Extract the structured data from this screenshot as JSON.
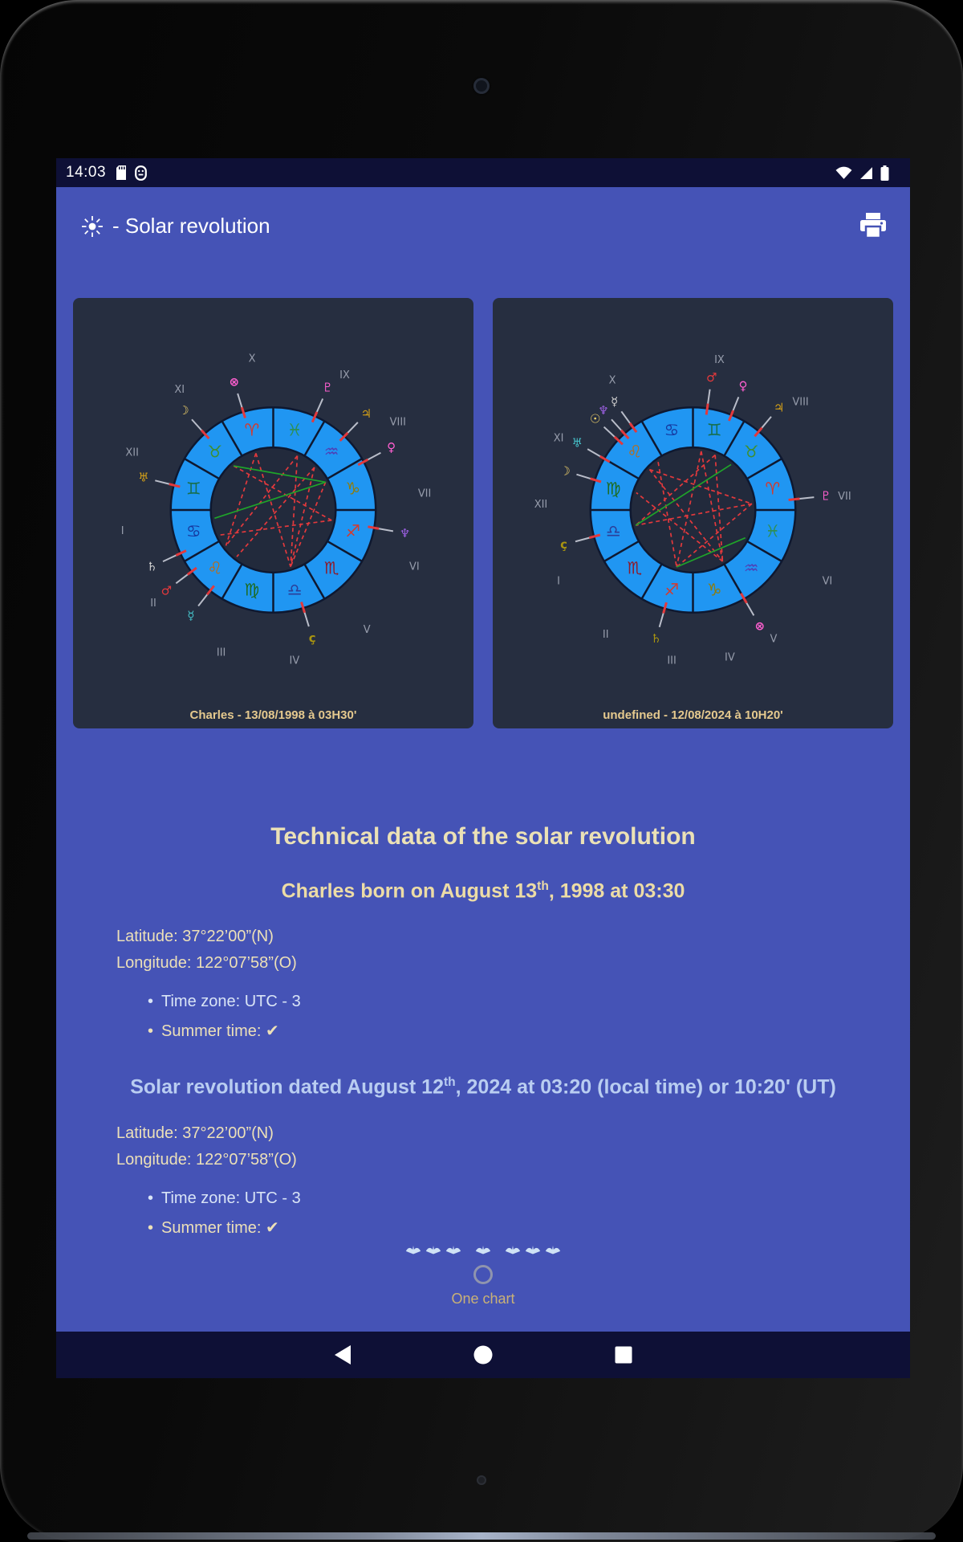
{
  "palette": {
    "app_bg": "#4553b6",
    "bar_bg": "#0e1036",
    "panel_bg": "#262e40",
    "ring_blue": "#2096f2",
    "cream": "#ece0b8",
    "heading_blue": "#b9cdf1",
    "caption": "#e5c98e",
    "one_chart": "#c9b177",
    "aspect_red": "#e3393c",
    "aspect_green": "#1fa32a"
  },
  "status_bar": {
    "time": "14:03"
  },
  "app_bar": {
    "title": "- Solar revolution"
  },
  "wheels": [
    {
      "caption": "Charles - 13/08/1998 à 03H30'",
      "signs": [
        {
          "g": "♈",
          "c": "#d23b2e"
        },
        {
          "g": "♓",
          "c": "#2e8f57"
        },
        {
          "g": "♒",
          "c": "#4f3fb5"
        },
        {
          "g": "♑",
          "c": "#8f7c0a"
        },
        {
          "g": "♐",
          "c": "#d23b2e"
        },
        {
          "g": "♏",
          "c": "#8e1a2a"
        },
        {
          "g": "♎",
          "c": "#2b3f99"
        },
        {
          "g": "♍",
          "c": "#1d6b21"
        },
        {
          "g": "♌",
          "c": "#c06a10"
        },
        {
          "g": "♋",
          "c": "#16379e"
        },
        {
          "g": "♊",
          "c": "#176f4f"
        },
        {
          "g": "♉",
          "c": "#3f8f2f"
        }
      ],
      "planets": [
        {
          "g": "☽",
          "c": "#f2d36b",
          "a": -42
        },
        {
          "g": "⊗",
          "c": "#ff5fd0",
          "a": -17
        },
        {
          "g": "♇",
          "c": "#ff5fd0",
          "a": 24
        },
        {
          "g": "♃",
          "c": "#d4a017",
          "a": 44
        },
        {
          "g": "♀",
          "c": "#ff5fd0",
          "a": 62
        },
        {
          "g": "♆",
          "c": "#9a5fe0",
          "a": 100
        },
        {
          "g": "ç",
          "c": "#a89410",
          "a": 163
        },
        {
          "g": "☿",
          "c": "#45c0c8",
          "a": 218
        },
        {
          "g": "♂",
          "c": "#e3393c",
          "a": 233
        },
        {
          "g": "♄",
          "c": "#cfcfcf",
          "a": 245
        },
        {
          "g": "♅",
          "c": "#d4a017",
          "a": 284
        }
      ],
      "numerals": [
        {
          "t": "X",
          "a": -8
        },
        {
          "t": "XI",
          "a": -38
        },
        {
          "t": "XII",
          "a": -68
        },
        {
          "t": "I",
          "a": -98
        },
        {
          "t": "II",
          "a": -128
        },
        {
          "t": "III",
          "a": -160
        },
        {
          "t": "IV",
          "a": 172
        },
        {
          "t": "V",
          "a": 142
        },
        {
          "t": "VI",
          "a": 112
        },
        {
          "t": "VII",
          "a": 84
        },
        {
          "t": "VIII",
          "a": 55
        },
        {
          "t": "IX",
          "a": 28
        }
      ],
      "aspects": [
        {
          "a": -17,
          "b": 163,
          "c": "#e3393c",
          "d": true
        },
        {
          "a": -17,
          "b": 233,
          "c": "#e3393c",
          "d": true
        },
        {
          "a": 24,
          "b": 233,
          "c": "#e3393c",
          "d": true
        },
        {
          "a": 24,
          "b": 163,
          "c": "#e3393c",
          "d": true
        },
        {
          "a": 44,
          "b": 218,
          "c": "#e3393c",
          "d": true
        },
        {
          "a": 62,
          "b": 163,
          "c": "#e3393c",
          "d": true
        },
        {
          "a": -42,
          "b": 100,
          "c": "#e3393c",
          "d": true
        },
        {
          "a": 100,
          "b": 245,
          "c": "#e3393c",
          "d": true
        },
        {
          "a": 44,
          "b": 163,
          "c": "#e3393c",
          "d": true
        },
        {
          "a": 62,
          "b": 262,
          "c": "#1fa32a",
          "d": false
        },
        {
          "a": -42,
          "b": 62,
          "c": "#1fa32a",
          "d": false
        }
      ]
    },
    {
      "caption": "undefined - 12/08/2024 à 10H20'",
      "signs": [
        {
          "g": "♋",
          "c": "#16379e"
        },
        {
          "g": "♊",
          "c": "#176f4f"
        },
        {
          "g": "♉",
          "c": "#3f8f2f"
        },
        {
          "g": "♈",
          "c": "#d23b2e"
        },
        {
          "g": "♓",
          "c": "#2e8f57"
        },
        {
          "g": "♒",
          "c": "#4f3fb5"
        },
        {
          "g": "♑",
          "c": "#8f7c0a"
        },
        {
          "g": "♐",
          "c": "#d23b2e"
        },
        {
          "g": "♏",
          "c": "#8e1a2a"
        },
        {
          "g": "♎",
          "c": "#2b3f99"
        },
        {
          "g": "♍",
          "c": "#1d6b21"
        },
        {
          "g": "♌",
          "c": "#c06a10"
        }
      ],
      "planets": [
        {
          "g": "♅",
          "c": "#45c0c8",
          "a": -60
        },
        {
          "g": "☉",
          "c": "#f2d36b",
          "a": -47
        },
        {
          "g": "☿",
          "c": "#cfcfcf",
          "a": -36
        },
        {
          "g": "♂",
          "c": "#e3393c",
          "a": 8
        },
        {
          "g": "♀",
          "c": "#ff5fd0",
          "a": 22
        },
        {
          "g": "♃",
          "c": "#d4a017",
          "a": 40
        },
        {
          "g": "♇",
          "c": "#ff5fd0",
          "a": 84
        },
        {
          "g": "⊗",
          "c": "#ff5fd0",
          "a": 150
        },
        {
          "g": "♄",
          "c": "#a89410",
          "a": 196
        },
        {
          "g": "ç",
          "c": "#a89410",
          "a": 255
        },
        {
          "g": "☽",
          "c": "#f2d36b",
          "a": 287
        },
        {
          "g": "♆",
          "c": "#9a5fe0",
          "a": 318
        }
      ],
      "numerals": [
        {
          "t": "X",
          "a": -32
        },
        {
          "t": "XI",
          "a": -62
        },
        {
          "t": "XII",
          "a": -88
        },
        {
          "t": "I",
          "a": -118
        },
        {
          "t": "II",
          "a": -145
        },
        {
          "t": "III",
          "a": -172
        },
        {
          "t": "IV",
          "a": 166
        },
        {
          "t": "V",
          "a": 148
        },
        {
          "t": "VI",
          "a": 118
        },
        {
          "t": "VII",
          "a": 85
        },
        {
          "t": "VIII",
          "a": 45
        },
        {
          "t": "IX",
          "a": 10
        }
      ],
      "aspects": [
        {
          "a": -47,
          "b": 84,
          "c": "#e3393c",
          "d": true
        },
        {
          "a": -47,
          "b": 150,
          "c": "#e3393c",
          "d": true
        },
        {
          "a": 8,
          "b": 196,
          "c": "#e3393c",
          "d": true
        },
        {
          "a": 8,
          "b": 150,
          "c": "#e3393c",
          "d": true
        },
        {
          "a": 22,
          "b": 255,
          "c": "#e3393c",
          "d": true
        },
        {
          "a": 84,
          "b": 255,
          "c": "#e3393c",
          "d": true
        },
        {
          "a": 84,
          "b": 196,
          "c": "#e3393c",
          "d": true
        },
        {
          "a": 150,
          "b": 287,
          "c": "#e3393c",
          "d": true
        },
        {
          "a": -36,
          "b": 196,
          "c": "#e3393c",
          "d": true
        },
        {
          "a": 22,
          "b": 150,
          "c": "#e3393c",
          "d": true
        },
        {
          "a": 118,
          "b": 196,
          "c": "#1fa32a",
          "d": false
        },
        {
          "a": 40,
          "b": 255,
          "c": "#1fa32a",
          "d": false
        }
      ]
    }
  ],
  "tech": {
    "title": "Technical data of the solar revolution",
    "natal_heading": {
      "pre": "Charles born on August 13",
      "sup": "th",
      "post": ", 1998 at 03:30"
    },
    "natal": {
      "latitude": "Latitude: 37°22’00”(N)",
      "longitude": "Longitude: 122°07’58”(O)",
      "timezone": "Time zone: UTC - 3",
      "summer": "Summer time: ✔"
    },
    "solar_heading": {
      "pre": "Solar revolution dated August 12",
      "sup": "th",
      "post": ", 2024 at 03:20 (local time) or 10:20' (UT)"
    },
    "solar": {
      "latitude": "Latitude: 37°22’00”(N)",
      "longitude": "Longitude: 122°07’58”(O)",
      "timezone": "Time zone: UTC - 3",
      "summer": "Summer time: ✔"
    }
  },
  "footer": {
    "one_chart": "One chart"
  }
}
